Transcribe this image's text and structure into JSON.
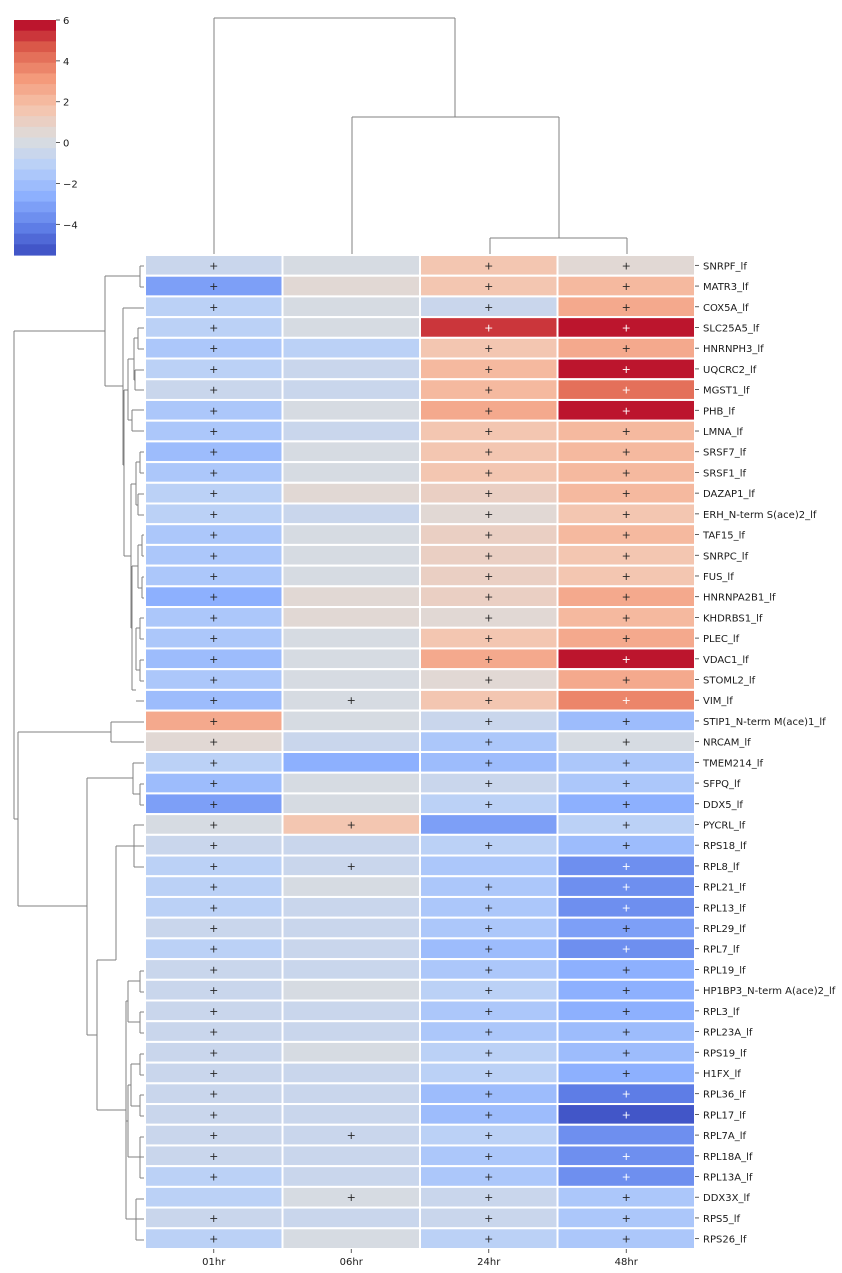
{
  "chart_data": {
    "type": "heatmap",
    "columns": [
      "01hr",
      "06hr",
      "24hr",
      "48hr"
    ],
    "rows": [
      "SNRPF_lf",
      "MATR3_lf",
      "COX5A_lf",
      "SLC25A5_lf",
      "HNRNPH3_lf",
      "UQCRC2_lf",
      "MGST1_lf",
      "PHB_lf",
      "LMNA_lf",
      "SRSF7_lf",
      "SRSF1_lf",
      "DAZAP1_lf",
      "ERH_N-term S(ace)2_lf",
      "TAF15_lf",
      "SNRPC_lf",
      "FUS_lf",
      "HNRNPA2B1_lf",
      "KHDRBS1_lf",
      "PLEC_lf",
      "VDAC1_lf",
      "STOML2_lf",
      "VIM_lf",
      "STIP1_N-term M(ace)1_lf",
      "NRCAM_lf",
      "TMEM214_lf",
      "SFPQ_lf",
      "DDX5_lf",
      "PYCRL_lf",
      "RPS18_lf",
      "RPL8_lf",
      "RPL21_lf",
      "RPL13_lf",
      "RPL29_lf",
      "RPL7_lf",
      "RPL19_lf",
      "HP1BP3_N-term A(ace)2_lf",
      "RPL3_lf",
      "RPL23A_lf",
      "RPS19_lf",
      "H1FX_lf",
      "RPL36_lf",
      "RPL17_lf",
      "RPL7A_lf",
      "RPL18A_lf",
      "RPL13A_lf",
      "DDX3X_lf",
      "RPS5_lf",
      "RPS26_lf"
    ],
    "values": [
      [
        -0.5,
        0,
        1.5,
        0.5
      ],
      [
        -3,
        0.5,
        1.5,
        2
      ],
      [
        -1,
        0,
        -0.5,
        2.5
      ],
      [
        -1,
        0,
        5,
        6
      ],
      [
        -1.5,
        -1,
        1.5,
        2.5
      ],
      [
        -1,
        -0.5,
        2,
        6
      ],
      [
        -0.5,
        -0.5,
        2,
        4
      ],
      [
        -1.5,
        0,
        2.5,
        6
      ],
      [
        -1.5,
        -0.5,
        1.5,
        2
      ],
      [
        -2,
        0,
        1.5,
        2
      ],
      [
        -1.5,
        0,
        1.5,
        2
      ],
      [
        -1,
        0.5,
        1,
        2
      ],
      [
        -1,
        -0.5,
        0.5,
        1.5
      ],
      [
        -1.5,
        0,
        1,
        2
      ],
      [
        -1.5,
        0,
        1,
        1.5
      ],
      [
        -1.5,
        0,
        1,
        1.5
      ],
      [
        -2.5,
        0.5,
        1,
        2.5
      ],
      [
        -1.5,
        0.5,
        0.5,
        2
      ],
      [
        -1.5,
        0,
        1.5,
        2.5
      ],
      [
        -2,
        0,
        2.5,
        6
      ],
      [
        -1.5,
        0,
        0.5,
        2.5
      ],
      [
        -2,
        0,
        1.5,
        3.5
      ],
      [
        2.5,
        0,
        -0.5,
        -2
      ],
      [
        0.5,
        -0.5,
        -1.5,
        0
      ],
      [
        -1,
        -2.5,
        -2,
        -1.5
      ],
      [
        -2,
        0,
        -0.5,
        -1.5
      ],
      [
        -3,
        0,
        -1,
        -2.5
      ],
      [
        0,
        1.5,
        -3,
        -1
      ],
      [
        -0.5,
        -0.5,
        -1,
        -2
      ],
      [
        -1,
        -0.5,
        -1.5,
        -3.5
      ],
      [
        -1,
        0,
        -1.5,
        -3.5
      ],
      [
        -1,
        -0.5,
        -1.5,
        -3.5
      ],
      [
        -0.5,
        -0.5,
        -1.5,
        -3
      ],
      [
        -1,
        -0.5,
        -2,
        -3.5
      ],
      [
        -0.5,
        -0.5,
        -1.5,
        -2.5
      ],
      [
        -0.5,
        0,
        -1,
        -2.5
      ],
      [
        -0.5,
        -0.5,
        -1.5,
        -2.5
      ],
      [
        -0.5,
        -0.5,
        -1.5,
        -2
      ],
      [
        -0.5,
        0,
        -1,
        -2
      ],
      [
        -0.5,
        -0.5,
        -1,
        -2.5
      ],
      [
        -0.5,
        -0.5,
        -2,
        -4
      ],
      [
        -0.5,
        -0.5,
        -2,
        -5
      ],
      [
        -0.5,
        -0.5,
        -1,
        -3.5
      ],
      [
        -0.5,
        -0.5,
        -1.5,
        -3.5
      ],
      [
        -1,
        -0.5,
        -1.5,
        -3.5
      ],
      [
        -1,
        0,
        -0.5,
        -1.5
      ],
      [
        -0.5,
        -0.5,
        -0.5,
        -1.5
      ],
      [
        -1,
        0,
        -1,
        -1.5
      ]
    ],
    "annotations": [
      [
        1,
        0,
        1,
        1
      ],
      [
        1,
        0,
        1,
        1
      ],
      [
        1,
        0,
        1,
        1
      ],
      [
        1,
        0,
        1,
        1
      ],
      [
        1,
        0,
        1,
        1
      ],
      [
        1,
        0,
        1,
        1
      ],
      [
        1,
        0,
        1,
        1
      ],
      [
        1,
        0,
        1,
        1
      ],
      [
        1,
        0,
        1,
        1
      ],
      [
        1,
        0,
        1,
        1
      ],
      [
        1,
        0,
        1,
        1
      ],
      [
        1,
        0,
        1,
        1
      ],
      [
        1,
        0,
        1,
        1
      ],
      [
        1,
        0,
        1,
        1
      ],
      [
        1,
        0,
        1,
        1
      ],
      [
        1,
        0,
        1,
        1
      ],
      [
        1,
        0,
        1,
        1
      ],
      [
        1,
        0,
        1,
        1
      ],
      [
        1,
        0,
        1,
        1
      ],
      [
        1,
        0,
        1,
        1
      ],
      [
        1,
        0,
        1,
        1
      ],
      [
        1,
        1,
        1,
        1
      ],
      [
        1,
        0,
        1,
        1
      ],
      [
        1,
        0,
        1,
        1
      ],
      [
        1,
        0,
        1,
        1
      ],
      [
        1,
        0,
        1,
        1
      ],
      [
        1,
        0,
        1,
        1
      ],
      [
        1,
        1,
        0,
        1
      ],
      [
        1,
        0,
        1,
        1
      ],
      [
        1,
        1,
        0,
        1
      ],
      [
        1,
        0,
        1,
        1
      ],
      [
        1,
        0,
        1,
        1
      ],
      [
        1,
        0,
        1,
        1
      ],
      [
        1,
        0,
        1,
        1
      ],
      [
        1,
        0,
        1,
        1
      ],
      [
        1,
        0,
        1,
        1
      ],
      [
        1,
        0,
        1,
        1
      ],
      [
        1,
        0,
        1,
        1
      ],
      [
        1,
        0,
        1,
        1
      ],
      [
        1,
        0,
        1,
        1
      ],
      [
        1,
        0,
        1,
        1
      ],
      [
        1,
        0,
        1,
        1
      ],
      [
        1,
        1,
        1,
        0
      ],
      [
        1,
        0,
        1,
        1
      ],
      [
        1,
        0,
        1,
        1
      ],
      [
        0,
        1,
        1,
        1
      ],
      [
        1,
        0,
        1,
        1
      ],
      [
        1,
        0,
        1,
        1
      ]
    ],
    "annotation_symbol": "+",
    "colormap": "coolwarm",
    "color_range": [
      -5.5,
      6
    ],
    "colorbar_ticks": [
      6,
      4,
      2,
      0,
      -2,
      -4
    ],
    "colorbar_levels": 22,
    "row_dendrogram": true,
    "column_dendrogram": true
  }
}
